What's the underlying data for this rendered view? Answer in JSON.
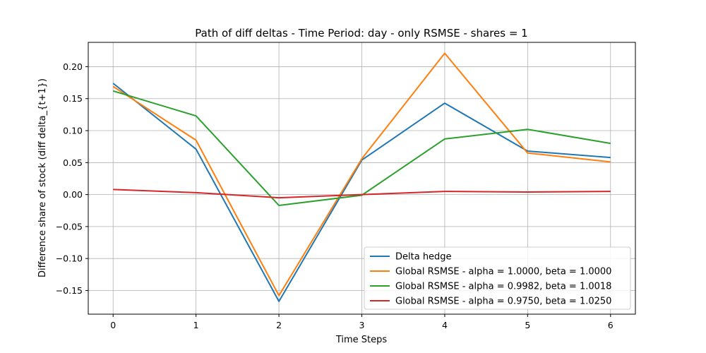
{
  "chart_data": {
    "type": "line",
    "title": "Path of diff deltas - Time Period: day - only RSMSE - shares = 1",
    "xlabel": "Time Steps",
    "ylabel": "Difference share of stock (diff delta_{t+1})",
    "x": [
      0,
      1,
      2,
      3,
      4,
      5,
      6
    ],
    "xlim": [
      -0.3,
      6.3
    ],
    "ylim": [
      -0.187,
      0.238
    ],
    "xticks": [
      "0",
      "1",
      "2",
      "3",
      "4",
      "5",
      "6"
    ],
    "yticks": [
      -0.15,
      -0.1,
      -0.05,
      0.0,
      0.05,
      0.1,
      0.15,
      0.2
    ],
    "ytick_labels": [
      "−0.15",
      "−0.10",
      "−0.05",
      "0.00",
      "0.05",
      "0.10",
      "0.15",
      "0.20"
    ],
    "grid": true,
    "legend_position": "lower-right",
    "series": [
      {
        "name": "Delta hedge",
        "color": "#1f77b4",
        "values": [
          0.174,
          0.071,
          -0.167,
          0.054,
          0.143,
          0.068,
          0.058
        ]
      },
      {
        "name": "Global RSMSE - alpha = 1.0000, beta = 1.0000",
        "color": "#ff7f0e",
        "values": [
          0.169,
          0.085,
          -0.158,
          0.056,
          0.221,
          0.065,
          0.051
        ]
      },
      {
        "name": "Global RSMSE - alpha = 0.9982, beta = 1.0018",
        "color": "#2ca02c",
        "values": [
          0.162,
          0.123,
          -0.017,
          -0.001,
          0.087,
          0.102,
          0.08
        ]
      },
      {
        "name": "Global RSMSE - alpha = 0.9750, beta = 1.0250",
        "color": "#d62728",
        "values": [
          0.008,
          0.003,
          -0.005,
          0.0,
          0.005,
          0.004,
          0.005
        ]
      }
    ]
  }
}
